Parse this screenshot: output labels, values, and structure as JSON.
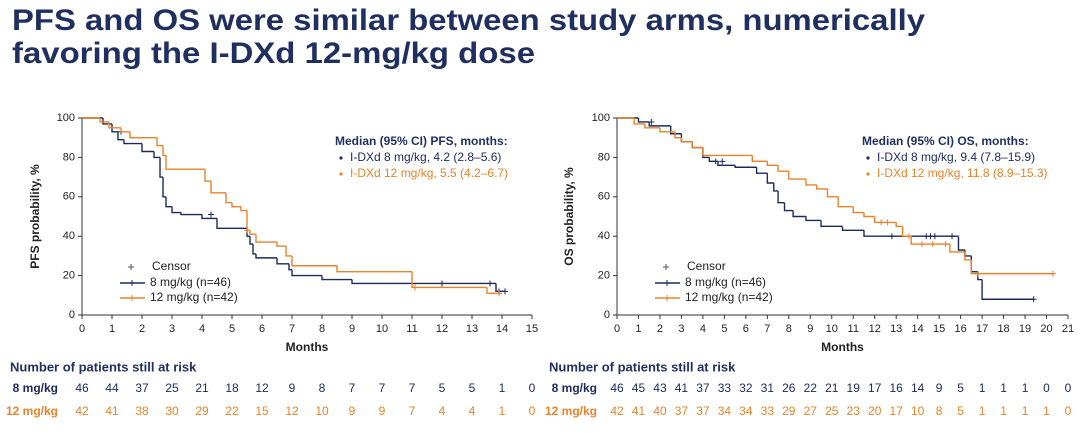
{
  "title_lines": [
    "PFS and OS were similar between study arms, numerically",
    "favoring the I-DXd 12-mg/kg dose"
  ],
  "chart_data": [
    {
      "type": "step",
      "xlabel": "Months",
      "ylabel": "PFS probability, %",
      "xlim": [
        0,
        15
      ],
      "ylim": [
        0,
        100
      ],
      "xticks": [
        0,
        1,
        2,
        3,
        4,
        5,
        6,
        7,
        8,
        9,
        10,
        11,
        12,
        13,
        14,
        15
      ],
      "yticks": [
        0,
        20,
        40,
        60,
        80,
        100
      ],
      "censor_label": "Censor",
      "series": [
        {
          "name": "8 mg/kg (n=46)",
          "color": "#1b2a5c",
          "x": [
            0,
            0.7,
            1.0,
            1.2,
            1.4,
            2.0,
            2.4,
            2.6,
            2.7,
            2.8,
            3.0,
            3.3,
            4.0,
            4.5,
            4.7,
            5.5,
            5.6,
            5.7,
            5.8,
            6.5,
            6.9,
            7.0,
            8.0,
            9.0,
            11.0,
            13.8,
            14.1
          ],
          "values": [
            100,
            97,
            93,
            89,
            87,
            83,
            80,
            70,
            60,
            55,
            52,
            51,
            49,
            44,
            44,
            40,
            36,
            31,
            29,
            26,
            23,
            20,
            18,
            16,
            16,
            12,
            12
          ],
          "censors_x": [
            1.3,
            4.3,
            12.0,
            13.6,
            13.9,
            14.1
          ],
          "censors_values": [
            93,
            51,
            16,
            16,
            12,
            12
          ]
        },
        {
          "name": "12 mg/kg (n=42)",
          "color": "#e8832a",
          "x": [
            0,
            0.6,
            0.9,
            1.3,
            1.6,
            2.5,
            2.7,
            2.8,
            3.0,
            4.1,
            4.3,
            4.8,
            5.0,
            5.3,
            5.5,
            5.6,
            5.8,
            6.5,
            6.8,
            7.0,
            8.5,
            11.0,
            13.5,
            14.0
          ],
          "values": [
            100,
            98,
            95,
            93,
            90,
            86,
            81,
            74,
            74,
            68,
            62,
            57,
            55,
            53,
            43,
            41,
            37,
            35,
            30,
            25,
            22,
            14,
            11,
            11
          ],
          "censors_x": [
            5.5,
            11.1,
            13.9
          ],
          "censors_values": [
            43,
            14,
            11
          ]
        }
      ],
      "annotation": {
        "title": "Median (95% CI) PFS, months:",
        "lines": [
          "I-DXd 8 mg/kg, 4.2 (2.8–5.6)",
          "I-DXd 12 mg/kg, 5.5 (4.2–6.7)"
        ]
      },
      "at_risk": {
        "title": "Number of patients still at risk",
        "rows": [
          {
            "label": "8 mg/kg",
            "values": [
              46,
              44,
              37,
              25,
              21,
              18,
              12,
              9,
              8,
              7,
              7,
              7,
              5,
              5,
              1,
              0
            ]
          },
          {
            "label": "12 mg/kg",
            "values": [
              42,
              41,
              38,
              30,
              29,
              22,
              15,
              12,
              10,
              9,
              9,
              7,
              4,
              4,
              1,
              0
            ]
          }
        ]
      }
    },
    {
      "type": "step",
      "xlabel": "Months",
      "ylabel": "OS probability, %",
      "xlim": [
        0,
        21
      ],
      "ylim": [
        0,
        100
      ],
      "xticks": [
        0,
        1,
        2,
        3,
        4,
        5,
        6,
        7,
        8,
        9,
        10,
        11,
        12,
        13,
        14,
        15,
        16,
        17,
        18,
        19,
        20,
        21
      ],
      "yticks": [
        0,
        20,
        40,
        60,
        80,
        100
      ],
      "censor_label": "Censor",
      "series": [
        {
          "name": "8 mg/kg (n=46)",
          "color": "#1b2a5c",
          "x": [
            0,
            1.0,
            1.5,
            2.5,
            3.0,
            3.5,
            4.0,
            4.3,
            4.7,
            5.5,
            6.5,
            7.0,
            7.3,
            7.5,
            7.8,
            8.2,
            8.8,
            9.5,
            10.5,
            11.5,
            12.0,
            15.9,
            16.2,
            16.5,
            16.8,
            17.0,
            19.4
          ],
          "values": [
            100,
            98,
            96,
            92,
            88,
            85,
            80,
            78,
            76,
            75,
            72,
            67,
            63,
            57,
            53,
            50,
            48,
            45,
            43,
            40,
            40,
            33,
            30,
            22,
            18,
            8,
            8
          ],
          "censors_x": [
            1.6,
            4.6,
            4.9,
            12.8,
            14.4,
            14.6,
            14.8,
            15.6,
            19.4
          ],
          "censors_values": [
            98,
            78,
            78,
            40,
            40,
            40,
            40,
            40,
            8
          ]
        },
        {
          "name": "12 mg/kg (n=42)",
          "color": "#e8832a",
          "x": [
            0,
            0.8,
            1.3,
            2.0,
            2.7,
            3.0,
            3.5,
            4.0,
            4.5,
            6.3,
            7.0,
            7.5,
            8.0,
            8.8,
            9.3,
            9.8,
            10.3,
            11.0,
            11.5,
            12.0,
            13.0,
            13.3,
            13.7,
            15.5,
            16.2,
            16.5,
            20.3
          ],
          "values": [
            100,
            97,
            95,
            93,
            90,
            88,
            85,
            81,
            81,
            78,
            76,
            73,
            69,
            66,
            64,
            60,
            55,
            52,
            50,
            47,
            45,
            40,
            36,
            32,
            28,
            21,
            21
          ],
          "censors_x": [
            12.3,
            12.6,
            13.6,
            14.2,
            14.7,
            15.3,
            16.8,
            20.3
          ],
          "censors_values": [
            47,
            47,
            40,
            36,
            36,
            36,
            21,
            21
          ]
        }
      ],
      "annotation": {
        "title": "Median (95% CI) OS, months:",
        "lines": [
          "I-DXd 8 mg/kg, 9.4 (7.8–15.9)",
          "I-DXd 12 mg/kg, 11.8 (8.9–15.3)"
        ]
      },
      "at_risk": {
        "title": "Number of patients still at risk",
        "rows": [
          {
            "label": "8 mg/kg",
            "values": [
              46,
              45,
              43,
              41,
              37,
              33,
              32,
              31,
              26,
              22,
              21,
              19,
              17,
              16,
              14,
              9,
              5,
              1,
              1,
              1,
              0,
              0
            ]
          },
          {
            "label": "12 mg/kg",
            "values": [
              42,
              41,
              40,
              37,
              37,
              34,
              34,
              33,
              29,
              27,
              25,
              23,
              20,
              17,
              10,
              8,
              5,
              1,
              1,
              1,
              1,
              0
            ]
          }
        ]
      }
    }
  ]
}
